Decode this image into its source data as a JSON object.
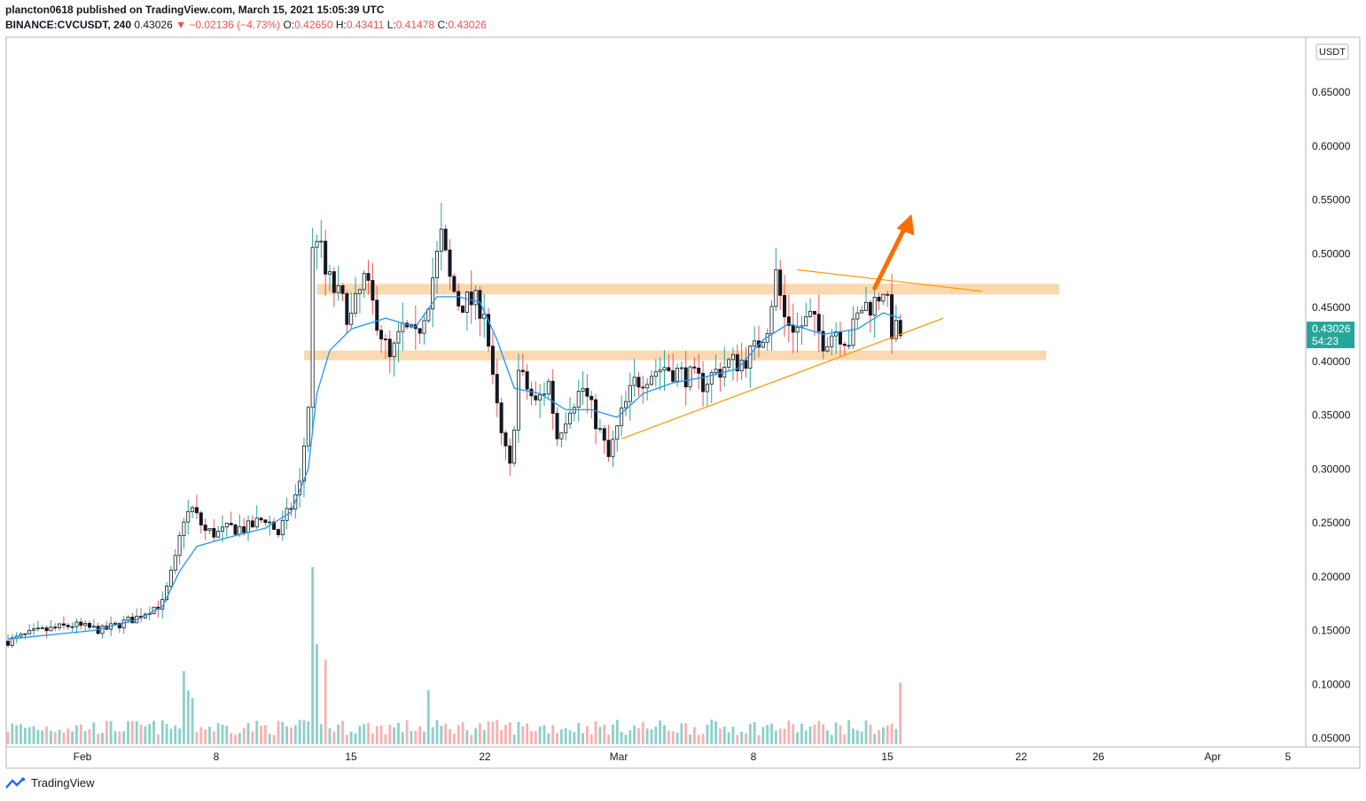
{
  "header": {
    "line1": "plancton0618 published on TradingView.com, March 15, 2021 15:05:39 UTC",
    "symbol": "BINANCE:CVCUSDT, 240",
    "last": "0.43026",
    "change": "−0.02136 (−4.73%)",
    "o_label": "O:",
    "o": "0.42650",
    "h_label": "H:",
    "h": "0.43411",
    "l_label": "L:",
    "l": "0.41478",
    "c_label": "C:",
    "c": "0.43026"
  },
  "price_axis": {
    "currency": "USDT",
    "ticks": [
      "0.65000",
      "0.60000",
      "0.55000",
      "0.50000",
      "0.45000",
      "0.40000",
      "0.35000",
      "0.30000",
      "0.25000",
      "0.20000",
      "0.15000",
      "0.10000",
      "0.05000"
    ],
    "last_price_label": "0.43026",
    "countdown": "54:23"
  },
  "time_axis": {
    "ticks": [
      "Feb",
      "8",
      "15",
      "22",
      "Mar",
      "8",
      "15",
      "22",
      "26",
      "Apr",
      "5"
    ]
  },
  "footer": {
    "brand": "TradingView"
  },
  "colors": {
    "up": "#26a69a",
    "down": "#ef5350",
    "candle_body": "#131722",
    "ma": "#2196f3",
    "zone": "#f9c98f",
    "trendline": "#ff9800",
    "arrow": "#ff6d00",
    "last_price_bg": "#26a69a"
  },
  "chart_data": {
    "type": "candlestick",
    "interval": "240",
    "symbol": "CVCUSDT",
    "ylim": [
      0.04,
      0.69
    ],
    "y_ticks": [
      0.65,
      0.6,
      0.55,
      0.5,
      0.45,
      0.4,
      0.35,
      0.3,
      0.25,
      0.2,
      0.15,
      0.1,
      0.05
    ],
    "x_ticks": [
      "Feb",
      "8",
      "15",
      "22",
      "Mar",
      "8",
      "15",
      "22",
      "26",
      "Apr",
      "5"
    ],
    "price_path": [
      [
        0,
        0.14
      ],
      [
        6,
        0.148
      ],
      [
        15,
        0.155
      ],
      [
        22,
        0.15
      ],
      [
        30,
        0.162
      ],
      [
        33,
        0.17
      ],
      [
        36,
        0.175
      ],
      [
        39,
        0.215
      ],
      [
        41,
        0.255
      ],
      [
        43,
        0.262
      ],
      [
        46,
        0.242
      ],
      [
        49,
        0.24
      ],
      [
        52,
        0.245
      ],
      [
        56,
        0.245
      ],
      [
        60,
        0.255
      ],
      [
        63,
        0.24
      ],
      [
        66,
        0.265
      ],
      [
        68,
        0.285
      ],
      [
        70,
        0.36
      ],
      [
        71,
        0.5
      ],
      [
        72,
        0.52
      ],
      [
        74,
        0.48
      ],
      [
        77,
        0.46
      ],
      [
        80,
        0.44
      ],
      [
        83,
        0.475
      ],
      [
        86,
        0.44
      ],
      [
        89,
        0.4
      ],
      [
        92,
        0.43
      ],
      [
        95,
        0.42
      ],
      [
        98,
        0.46
      ],
      [
        101,
        0.515
      ],
      [
        103,
        0.475
      ],
      [
        105,
        0.455
      ],
      [
        108,
        0.455
      ],
      [
        111,
        0.45
      ],
      [
        113,
        0.38
      ],
      [
        115,
        0.33
      ],
      [
        117,
        0.3
      ],
      [
        119,
        0.39
      ],
      [
        121,
        0.375
      ],
      [
        123,
        0.36
      ],
      [
        126,
        0.38
      ],
      [
        128,
        0.33
      ],
      [
        131,
        0.36
      ],
      [
        134,
        0.375
      ],
      [
        137,
        0.345
      ],
      [
        140,
        0.31
      ],
      [
        143,
        0.35
      ],
      [
        146,
        0.38
      ],
      [
        150,
        0.39
      ],
      [
        153,
        0.395
      ],
      [
        156,
        0.39
      ],
      [
        159,
        0.385
      ],
      [
        162,
        0.38
      ],
      [
        165,
        0.39
      ],
      [
        168,
        0.398
      ],
      [
        171,
        0.4
      ],
      [
        174,
        0.41
      ],
      [
        177,
        0.435
      ],
      [
        179,
        0.48
      ],
      [
        181,
        0.44
      ],
      [
        184,
        0.43
      ],
      [
        187,
        0.44
      ],
      [
        190,
        0.42
      ],
      [
        193,
        0.43
      ],
      [
        196,
        0.42
      ],
      [
        199,
        0.45
      ],
      [
        202,
        0.455
      ],
      [
        204,
        0.47
      ],
      [
        206,
        0.43
      ],
      [
        208,
        0.425
      ]
    ],
    "ma_path": [
      [
        0,
        0.142
      ],
      [
        20,
        0.15
      ],
      [
        30,
        0.16
      ],
      [
        36,
        0.172
      ],
      [
        40,
        0.205
      ],
      [
        44,
        0.228
      ],
      [
        50,
        0.235
      ],
      [
        60,
        0.245
      ],
      [
        66,
        0.26
      ],
      [
        70,
        0.3
      ],
      [
        72,
        0.37
      ],
      [
        75,
        0.41
      ],
      [
        80,
        0.43
      ],
      [
        88,
        0.44
      ],
      [
        95,
        0.432
      ],
      [
        100,
        0.46
      ],
      [
        105,
        0.46
      ],
      [
        110,
        0.455
      ],
      [
        114,
        0.42
      ],
      [
        118,
        0.375
      ],
      [
        124,
        0.37
      ],
      [
        130,
        0.355
      ],
      [
        136,
        0.355
      ],
      [
        142,
        0.348
      ],
      [
        148,
        0.37
      ],
      [
        155,
        0.38
      ],
      [
        162,
        0.385
      ],
      [
        170,
        0.393
      ],
      [
        176,
        0.42
      ],
      [
        182,
        0.435
      ],
      [
        190,
        0.425
      ],
      [
        198,
        0.43
      ],
      [
        204,
        0.445
      ],
      [
        208,
        0.44
      ]
    ],
    "volume_peaks": [
      [
        41,
        0.095
      ],
      [
        42,
        0.07
      ],
      [
        43,
        0.06
      ],
      [
        71,
        0.23
      ],
      [
        72,
        0.13
      ],
      [
        74,
        0.11
      ],
      [
        98,
        0.07
      ],
      [
        208,
        0.08
      ]
    ],
    "zones": [
      {
        "from_bar": 72,
        "to_bar": 245,
        "low": 0.462,
        "high": 0.472
      },
      {
        "from_bar": 69,
        "to_bar": 242,
        "low": 0.401,
        "high": 0.41
      }
    ],
    "trendlines": [
      {
        "x1": 143,
        "y1": 0.328,
        "x2": 218,
        "y2": 0.44
      },
      {
        "x1": 184,
        "y1": 0.485,
        "x2": 227,
        "y2": 0.465
      }
    ],
    "arrow": {
      "x1": 202,
      "y1": 0.468,
      "x2": 210,
      "y2": 0.535
    }
  }
}
